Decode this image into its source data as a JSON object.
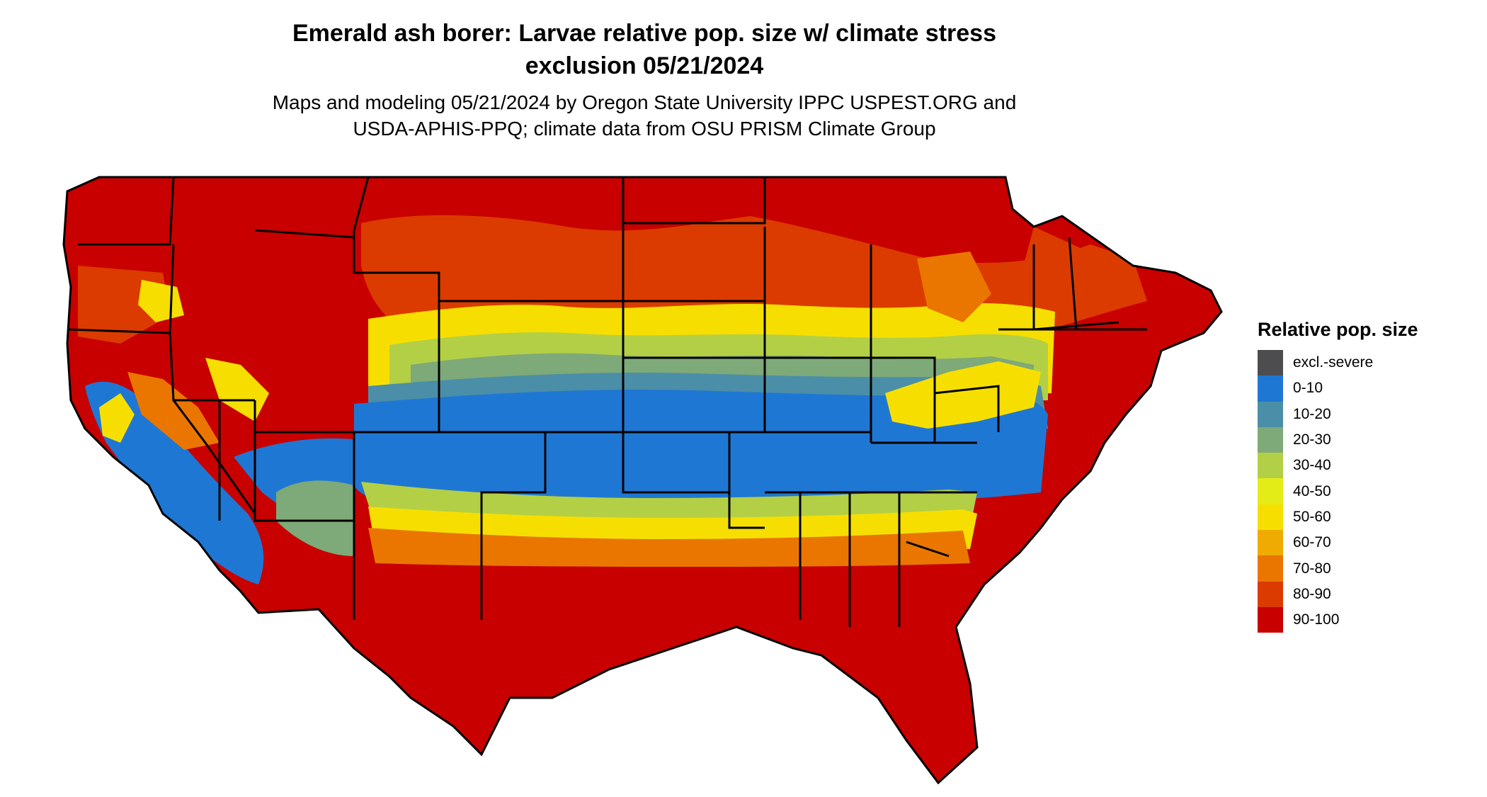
{
  "figure": {
    "title_line1": "Emerald ash borer: Larvae relative pop. size w/ climate stress",
    "title_line2": "exclusion 05/21/2024",
    "subtitle_line1": "Maps and modeling 05/21/2024 by Oregon State University IPPC USPEST.ORG and",
    "subtitle_line2": "USDA-APHIS-PPQ; climate data from OSU PRISM Climate Group"
  },
  "map": {
    "region": "Contiguous United States",
    "boundaries": "state borders"
  },
  "legend": {
    "title": "Relative pop. size",
    "items": [
      {
        "label": "excl.-severe",
        "color": "#4d4d4f"
      },
      {
        "label": "0-10",
        "color": "#1f77d4"
      },
      {
        "label": "10-20",
        "color": "#4b8ea7"
      },
      {
        "label": "20-30",
        "color": "#7ea978"
      },
      {
        "label": "30-40",
        "color": "#b3cf46"
      },
      {
        "label": "40-50",
        "color": "#e3ec16"
      },
      {
        "label": "50-60",
        "color": "#f6df00"
      },
      {
        "label": "60-70",
        "color": "#f0ab00"
      },
      {
        "label": "70-80",
        "color": "#ea7600"
      },
      {
        "label": "80-90",
        "color": "#dc3b00"
      },
      {
        "label": "90-100",
        "color": "#c80000"
      }
    ]
  }
}
